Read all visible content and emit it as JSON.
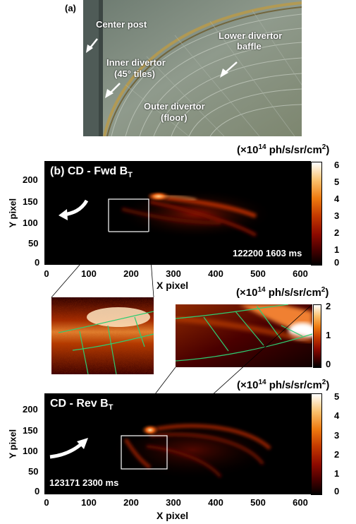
{
  "panel_a": {
    "label": "(a)",
    "photo_labels": {
      "center_post": "Center post",
      "inner_divertor_line1": "Inner divertor",
      "inner_divertor_line2": "(45° tiles)",
      "outer_divertor_line1": "Outer divertor",
      "outer_divertor_line2": "(floor)",
      "lower_baffle_line1": "Lower divertor",
      "lower_baffle_line2": "baffle"
    }
  },
  "units": {
    "prefix": "(×10",
    "exp": "14",
    "mid": " ph/s/sr/cm",
    "exp2": "2",
    "suffix": ")"
  },
  "panel_b": {
    "title_main": "(b) CD - Fwd B",
    "title_sub": "T",
    "shot": "122200 1603 ms",
    "colorbar_ticks": [
      "6",
      "5",
      "4",
      "3",
      "2",
      "1",
      "0"
    ],
    "x_ticks": [
      "0",
      "100",
      "200",
      "300",
      "400",
      "500",
      "600"
    ],
    "y_ticks": [
      "200",
      "150",
      "100",
      "50",
      "0"
    ],
    "xlabel": "X pixel",
    "ylabel": "Y pixel"
  },
  "zoom": {
    "colorbar_ticks": [
      "2",
      "1",
      "0"
    ]
  },
  "panel_c": {
    "title_main": "CD - Rev B",
    "title_sub": "T",
    "shot": "123171 2300 ms",
    "colorbar_ticks": [
      "5",
      "4",
      "3",
      "2",
      "1",
      "0"
    ],
    "x_ticks": [
      "0",
      "100",
      "200",
      "300",
      "400",
      "500",
      "600"
    ],
    "y_ticks": [
      "200",
      "150",
      "100",
      "50",
      "0"
    ],
    "xlabel": "X pixel",
    "ylabel": "Y pixel"
  },
  "colors": {
    "colormap": [
      "#000000",
      "#4a0000",
      "#8e0a00",
      "#c43a00",
      "#ee7a10",
      "#fbbf6a",
      "#ffffff"
    ],
    "mesh_line": "#2ecc71"
  }
}
